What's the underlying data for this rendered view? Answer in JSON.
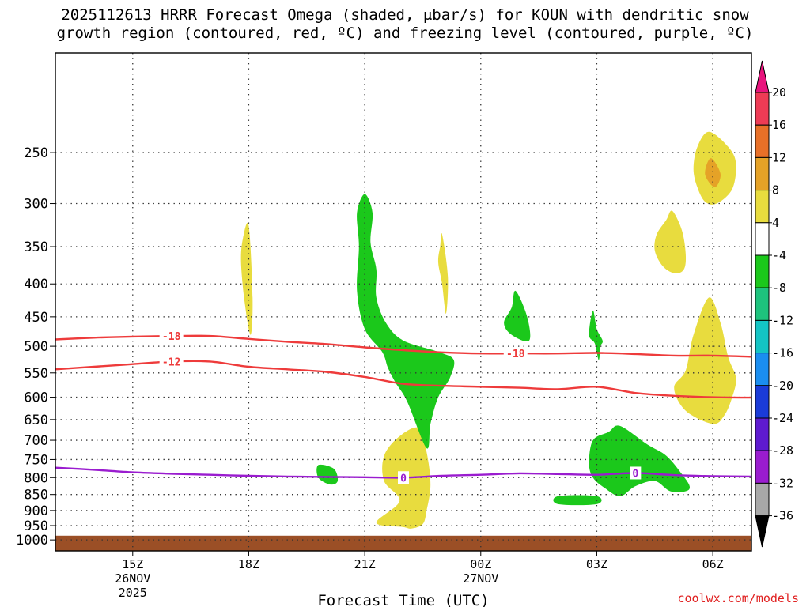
{
  "title_line1": "2025112613 HRRR Forecast Omega (shaded, μbar/s) for KOUN with dendritic snow",
  "title_line2": "growth region (contoured, red, ºC) and freezing level (contoured, purple, ºC)",
  "credit": "coolwx.com/models",
  "chart_data": {
    "type": "time-height cross section",
    "xlabel": "Forecast Time (UTC)",
    "ylabel": "",
    "x_range_hours": [
      13.0,
      31.0
    ],
    "y_range_hpa": [
      1040,
      175
    ],
    "y_scale": "log",
    "x_ticks": [
      {
        "h": 15,
        "label": "15Z",
        "sub1": "26NOV",
        "sub2": "2025"
      },
      {
        "h": 18,
        "label": "18Z",
        "sub1": "",
        "sub2": ""
      },
      {
        "h": 21,
        "label": "21Z",
        "sub1": "",
        "sub2": ""
      },
      {
        "h": 24,
        "label": "00Z",
        "sub1": "27NOV",
        "sub2": ""
      },
      {
        "h": 27,
        "label": "03Z",
        "sub1": "",
        "sub2": ""
      },
      {
        "h": 30,
        "label": "06Z",
        "sub1": "",
        "sub2": ""
      }
    ],
    "y_ticks": [
      250,
      300,
      350,
      400,
      450,
      500,
      550,
      600,
      650,
      700,
      750,
      800,
      850,
      900,
      950,
      1000
    ],
    "ground": {
      "from_hpa": 985,
      "to_hpa": 1040,
      "color": "#9b4f26"
    },
    "contours": [
      {
        "name": "-18 C isotherm",
        "label": "-18",
        "color": "#ee3b3b",
        "x": [
          13.0,
          14.0,
          15.0,
          16.0,
          17.0,
          18.0,
          19.0,
          20.0,
          21.0,
          22.0,
          23.0,
          24.0,
          25.0,
          26.0,
          27.0,
          28.0,
          29.0,
          30.0,
          31.0
        ],
        "p": [
          488,
          485,
          483,
          482,
          482,
          487,
          492,
          496,
          502,
          507,
          511,
          513,
          513,
          513,
          512,
          514,
          517,
          517,
          519
        ],
        "label_at": [
          {
            "h": 16.0
          },
          {
            "h": 24.9
          }
        ]
      },
      {
        "name": "-12 C isotherm",
        "label": "-12",
        "color": "#ee3b3b",
        "x": [
          13.0,
          14.0,
          15.0,
          16.0,
          17.0,
          18.0,
          19.0,
          20.0,
          21.0,
          22.0,
          23.0,
          24.0,
          25.0,
          26.0,
          27.0,
          28.0,
          29.0,
          30.0,
          31.0
        ],
        "p": [
          543,
          538,
          533,
          528,
          528,
          538,
          543,
          548,
          558,
          572,
          576,
          578,
          580,
          583,
          578,
          591,
          597,
          600,
          601
        ],
        "label_at": [
          {
            "h": 16.0
          }
        ]
      },
      {
        "name": "0 C freezing level",
        "label": "0",
        "color": "#9a1ccf",
        "x": [
          13.0,
          14.0,
          15.0,
          16.0,
          17.0,
          18.0,
          19.0,
          20.0,
          21.0,
          22.0,
          23.0,
          24.0,
          25.0,
          26.0,
          27.0,
          28.0,
          29.0,
          30.0,
          31.0
        ],
        "p": [
          772,
          778,
          785,
          789,
          792,
          795,
          797,
          798,
          799,
          800,
          795,
          792,
          788,
          790,
          792,
          787,
          793,
          796,
          797
        ],
        "label_at": [
          {
            "h": 22.0
          },
          {
            "h": 28.0
          }
        ]
      }
    ],
    "shaded_regions": [
      {
        "category": "4 to 8",
        "color": "#e8dc3e",
        "h": [
          18.0,
          18.1,
          18.05,
          17.9,
          17.8,
          17.85
        ],
        "p": [
          325,
          420,
          480,
          430,
          370,
          340
        ]
      },
      {
        "category": "4 to 8",
        "color": "#e8dc3e",
        "h": [
          22.4,
          22.6,
          22.7,
          22.6,
          22.5,
          22.2,
          22.0,
          21.3,
          21.9,
          21.5,
          21.5,
          21.9
        ],
        "p": [
          670,
          730,
          820,
          900,
          945,
          960,
          955,
          940,
          870,
          810,
          740,
          690
        ]
      },
      {
        "category": "4 to 8",
        "color": "#e8dc3e",
        "h": [
          23.0,
          23.15,
          23.1,
          23.0,
          22.9,
          22.95
        ],
        "p": [
          335,
          390,
          445,
          400,
          370,
          350
        ]
      },
      {
        "category": "4 to 8",
        "color": "#e8dc3e",
        "h": [
          29.9,
          30.2,
          30.4,
          30.6,
          30.5,
          30.3,
          30.0,
          29.3,
          29.0,
          29.3,
          29.5
        ],
        "p": [
          420,
          460,
          520,
          560,
          600,
          640,
          660,
          630,
          580,
          545,
          480
        ]
      },
      {
        "category": "4 to 8",
        "color": "#e8dc3e",
        "h": [
          29.9,
          30.4,
          30.6,
          30.5,
          30.1,
          29.8,
          29.6,
          29.5,
          29.6
        ],
        "p": [
          232,
          245,
          260,
          285,
          300,
          298,
          283,
          265,
          245
        ]
      },
      {
        "category": "4 to 8",
        "color": "#e8dc3e",
        "h": [
          28.95,
          29.2,
          29.3,
          29.25,
          29.0,
          28.7,
          28.5,
          28.55,
          28.8
        ],
        "p": [
          308,
          330,
          360,
          380,
          385,
          375,
          355,
          335,
          318
        ]
      },
      {
        "category": "8 to 12",
        "color": "#e5a227",
        "h": [
          29.95,
          30.2,
          30.05,
          29.8
        ],
        "p": [
          255,
          270,
          283,
          270
        ]
      },
      {
        "category": "-8 to -4",
        "color": "#1bc81b",
        "h": [
          21.0,
          21.2,
          21.15,
          21.3,
          21.3,
          21.55,
          22.0,
          22.9,
          23.3,
          23.2,
          22.9,
          22.7,
          22.6,
          22.1,
          21.8,
          21.6,
          21.45,
          21.0,
          20.8,
          20.85,
          20.8
        ],
        "p": [
          290,
          310,
          345,
          380,
          420,
          460,
          490,
          510,
          525,
          560,
          600,
          660,
          720,
          610,
          570,
          540,
          510,
          470,
          410,
          350,
          310
        ]
      },
      {
        "category": "-8 to -4",
        "color": "#1bc81b",
        "h": [
          24.9,
          25.2,
          25.25,
          24.8,
          24.6,
          24.8
        ],
        "p": [
          410,
          450,
          490,
          480,
          460,
          435
        ]
      },
      {
        "category": "-8 to -4",
        "color": "#1bc81b",
        "h": [
          26.9,
          27.0,
          27.15,
          27.1,
          27.05,
          26.95,
          26.8
        ],
        "p": [
          440,
          470,
          490,
          500,
          525,
          495,
          480
        ]
      },
      {
        "category": "-8 to -4",
        "color": "#1bc81b",
        "h": [
          19.8,
          20.2,
          20.3,
          20.1,
          19.8
        ],
        "p": [
          765,
          775,
          810,
          820,
          800
        ]
      },
      {
        "category": "-8 to -4",
        "color": "#1bc81b",
        "h": [
          26.9,
          27.3,
          27.6,
          28.3,
          28.8,
          29.2,
          29.4,
          29.3,
          28.9,
          28.5,
          28.0,
          27.6,
          27.2,
          26.9,
          26.8
        ],
        "p": [
          700,
          680,
          665,
          710,
          740,
          790,
          825,
          840,
          840,
          810,
          825,
          855,
          830,
          800,
          760
        ]
      },
      {
        "category": "-8 to -4",
        "color": "#1bc81b",
        "h": [
          26.0,
          27.0,
          27.0,
          26.0
        ],
        "p": [
          855,
          855,
          880,
          880
        ]
      }
    ],
    "colorbar": {
      "labels": [
        "20",
        "16",
        "12",
        "8",
        "4",
        "-4",
        "-8",
        "-12",
        "-16",
        "-20",
        "-24",
        "-28",
        "-32",
        "-36"
      ],
      "colors": [
        "#ee3b55",
        "#e87028",
        "#e5a227",
        "#e8dc3e",
        "#ffffff",
        "#1bc81b",
        "#1ec37d",
        "#14c4c4",
        "#1a8ef0",
        "#1a3bd8",
        "#5e1ad0",
        "#9a1ccf",
        "#a8a8a8"
      ],
      "top_triangle_color": "#e8147d",
      "bottom_triangle_color": "#000000"
    }
  }
}
